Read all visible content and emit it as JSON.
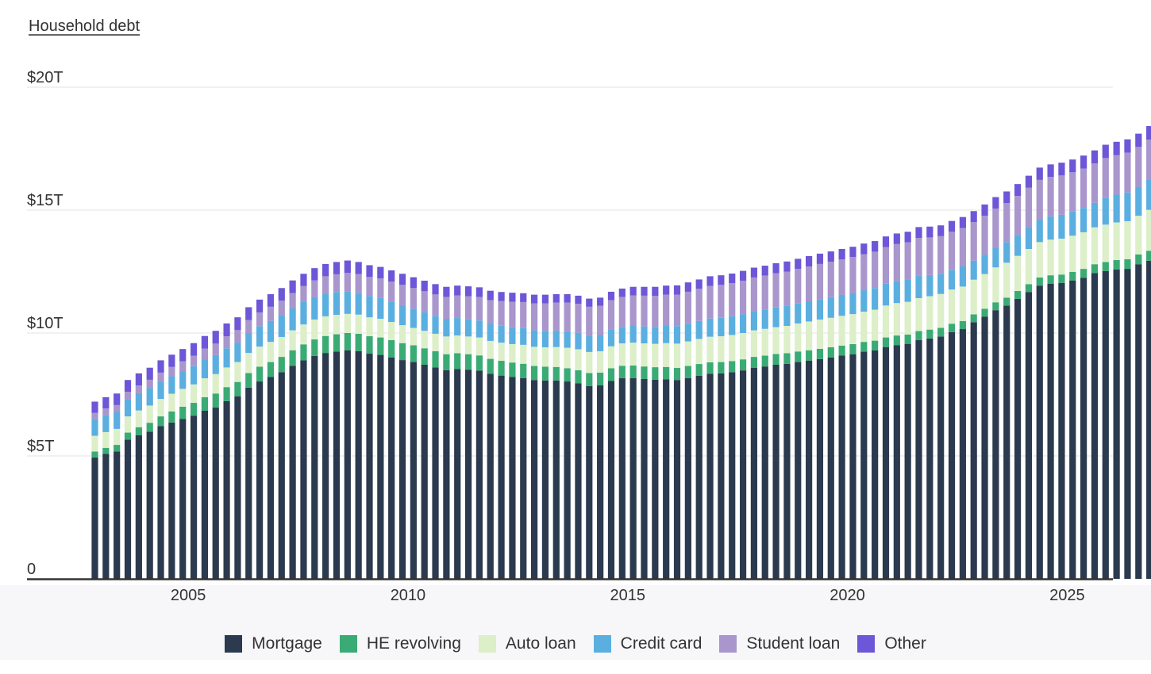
{
  "chart_data": {
    "type": "bar",
    "stacked": true,
    "title": "Household debt",
    "y_unit": "trillions of dollars",
    "ylim": [
      0,
      20
    ],
    "y_ticks": [
      {
        "value": 0,
        "label": "0"
      },
      {
        "value": 5,
        "label": "$5T"
      },
      {
        "value": 10,
        "label": "$10T"
      },
      {
        "value": 15,
        "label": "$15T"
      },
      {
        "value": 20,
        "label": "$20T"
      }
    ],
    "x_ticks": [
      {
        "value": 2005,
        "label": "2005"
      },
      {
        "value": 2010,
        "label": "2010"
      },
      {
        "value": 2015,
        "label": "2015"
      },
      {
        "value": 2020,
        "label": "2020"
      },
      {
        "value": 2025,
        "label": "2025"
      }
    ],
    "x_start": 2003.0,
    "x_step": 0.25,
    "grid": true,
    "legend_position": "bottom",
    "series": [
      {
        "name": "Mortgage",
        "color": "#2b3a4e",
        "values": [
          4.94,
          5.08,
          5.18,
          5.66,
          5.84,
          5.99,
          6.21,
          6.36,
          6.51,
          6.64,
          6.84,
          6.97,
          7.23,
          7.43,
          7.78,
          8.03,
          8.21,
          8.41,
          8.67,
          8.89,
          9.07,
          9.19,
          9.25,
          9.3,
          9.26,
          9.16,
          9.11,
          9.01,
          8.9,
          8.82,
          8.71,
          8.6,
          8.49,
          8.54,
          8.51,
          8.47,
          8.34,
          8.27,
          8.21,
          8.17,
          8.09,
          8.07,
          8.07,
          8.03,
          7.96,
          7.84,
          7.87,
          8.05,
          8.16,
          8.17,
          8.13,
          8.1,
          8.12,
          8.09,
          8.17,
          8.26,
          8.34,
          8.36,
          8.41,
          8.48,
          8.59,
          8.64,
          8.71,
          8.75,
          8.82,
          8.88,
          8.94,
          9.0,
          9.08,
          9.14,
          9.24,
          9.29,
          9.43,
          9.51,
          9.56,
          9.71,
          9.78,
          9.86,
          10.04,
          10.16,
          10.44,
          10.67,
          10.93,
          11.12,
          11.39,
          11.67,
          11.93,
          12.01,
          12.04,
          12.14,
          12.25,
          12.44,
          12.52,
          12.59,
          12.61,
          12.8,
          12.94
        ]
      },
      {
        "name": "HE revolving",
        "color": "#3aab74",
        "values": [
          0.24,
          0.25,
          0.27,
          0.29,
          0.33,
          0.36,
          0.4,
          0.45,
          0.49,
          0.52,
          0.55,
          0.57,
          0.57,
          0.58,
          0.59,
          0.6,
          0.61,
          0.62,
          0.63,
          0.65,
          0.67,
          0.69,
          0.7,
          0.7,
          0.71,
          0.71,
          0.71,
          0.7,
          0.69,
          0.68,
          0.67,
          0.66,
          0.65,
          0.64,
          0.63,
          0.62,
          0.61,
          0.6,
          0.59,
          0.58,
          0.57,
          0.56,
          0.55,
          0.54,
          0.53,
          0.53,
          0.52,
          0.52,
          0.51,
          0.51,
          0.51,
          0.51,
          0.5,
          0.49,
          0.49,
          0.48,
          0.47,
          0.46,
          0.45,
          0.45,
          0.44,
          0.44,
          0.44,
          0.43,
          0.43,
          0.42,
          0.42,
          0.42,
          0.41,
          0.41,
          0.4,
          0.4,
          0.39,
          0.39,
          0.38,
          0.37,
          0.36,
          0.35,
          0.34,
          0.33,
          0.32,
          0.32,
          0.32,
          0.32,
          0.32,
          0.32,
          0.33,
          0.34,
          0.34,
          0.35,
          0.36,
          0.36,
          0.37,
          0.38,
          0.39,
          0.4,
          0.41
        ]
      },
      {
        "name": "Auto loan",
        "color": "#dcefc8",
        "values": [
          0.64,
          0.64,
          0.65,
          0.66,
          0.68,
          0.7,
          0.71,
          0.72,
          0.73,
          0.75,
          0.77,
          0.79,
          0.8,
          0.81,
          0.82,
          0.82,
          0.82,
          0.81,
          0.81,
          0.81,
          0.81,
          0.8,
          0.79,
          0.78,
          0.78,
          0.77,
          0.76,
          0.74,
          0.73,
          0.71,
          0.71,
          0.71,
          0.72,
          0.72,
          0.72,
          0.73,
          0.73,
          0.74,
          0.75,
          0.77,
          0.78,
          0.79,
          0.81,
          0.83,
          0.85,
          0.86,
          0.87,
          0.89,
          0.91,
          0.93,
          0.94,
          0.95,
          0.97,
          0.99,
          1.0,
          1.02,
          1.04,
          1.05,
          1.06,
          1.07,
          1.08,
          1.09,
          1.09,
          1.11,
          1.14,
          1.17,
          1.19,
          1.2,
          1.21,
          1.22,
          1.23,
          1.26,
          1.3,
          1.32,
          1.33,
          1.34,
          1.36,
          1.38,
          1.39,
          1.4,
          1.41,
          1.41,
          1.42,
          1.42,
          1.43,
          1.43,
          1.44,
          1.45,
          1.46,
          1.47,
          1.49,
          1.5,
          1.52,
          1.53,
          1.55,
          1.57,
          1.66
        ]
      },
      {
        "name": "Credit card",
        "color": "#5aafe0",
        "values": [
          0.69,
          0.7,
          0.69,
          0.7,
          0.7,
          0.71,
          0.71,
          0.71,
          0.72,
          0.74,
          0.76,
          0.77,
          0.78,
          0.79,
          0.81,
          0.83,
          0.85,
          0.87,
          0.89,
          0.91,
          0.92,
          0.93,
          0.93,
          0.92,
          0.89,
          0.87,
          0.85,
          0.83,
          0.81,
          0.78,
          0.76,
          0.73,
          0.72,
          0.71,
          0.7,
          0.69,
          0.69,
          0.69,
          0.68,
          0.68,
          0.67,
          0.67,
          0.67,
          0.67,
          0.67,
          0.66,
          0.66,
          0.67,
          0.67,
          0.68,
          0.69,
          0.69,
          0.7,
          0.71,
          0.72,
          0.73,
          0.74,
          0.75,
          0.76,
          0.77,
          0.78,
          0.79,
          0.8,
          0.81,
          0.81,
          0.82,
          0.83,
          0.84,
          0.85,
          0.86,
          0.87,
          0.88,
          0.89,
          0.9,
          0.91,
          0.93,
          0.86,
          0.81,
          0.8,
          0.82,
          0.77,
          0.79,
          0.8,
          0.84,
          0.84,
          0.89,
          0.93,
          0.95,
          0.97,
          0.98,
          0.99,
          1.0,
          1.1,
          1.13,
          1.17,
          1.18,
          1.23
        ]
      },
      {
        "name": "Student loan",
        "color": "#a996cc",
        "values": [
          0.24,
          0.26,
          0.28,
          0.3,
          0.32,
          0.34,
          0.36,
          0.38,
          0.4,
          0.43,
          0.45,
          0.47,
          0.49,
          0.51,
          0.53,
          0.56,
          0.58,
          0.61,
          0.63,
          0.65,
          0.67,
          0.7,
          0.72,
          0.75,
          0.76,
          0.77,
          0.79,
          0.81,
          0.83,
          0.84,
          0.85,
          0.87,
          0.89,
          0.92,
          0.94,
          0.96,
          0.97,
          1.0,
          1.04,
          1.06,
          1.1,
          1.12,
          1.14,
          1.17,
          1.18,
          1.18,
          1.19,
          1.21,
          1.22,
          1.24,
          1.25,
          1.26,
          1.27,
          1.28,
          1.3,
          1.31,
          1.33,
          1.34,
          1.35,
          1.36,
          1.37,
          1.38,
          1.39,
          1.4,
          1.41,
          1.42,
          1.43,
          1.44,
          1.45,
          1.46,
          1.47,
          1.48,
          1.49,
          1.5,
          1.51,
          1.52,
          1.53,
          1.54,
          1.55,
          1.56,
          1.57,
          1.58,
          1.59,
          1.59,
          1.6,
          1.6,
          1.6,
          1.6,
          1.6,
          1.6,
          1.6,
          1.6,
          1.61,
          1.61,
          1.62,
          1.62,
          1.63
        ]
      },
      {
        "name": "Other",
        "color": "#6e56d8",
        "values": [
          0.46,
          0.46,
          0.47,
          0.48,
          0.49,
          0.49,
          0.5,
          0.5,
          0.5,
          0.51,
          0.51,
          0.52,
          0.52,
          0.52,
          0.52,
          0.52,
          0.51,
          0.51,
          0.51,
          0.5,
          0.5,
          0.5,
          0.5,
          0.5,
          0.49,
          0.48,
          0.47,
          0.46,
          0.45,
          0.44,
          0.43,
          0.42,
          0.41,
          0.4,
          0.4,
          0.39,
          0.38,
          0.37,
          0.37,
          0.36,
          0.35,
          0.35,
          0.34,
          0.34,
          0.33,
          0.33,
          0.33,
          0.34,
          0.34,
          0.35,
          0.36,
          0.37,
          0.37,
          0.38,
          0.38,
          0.38,
          0.39,
          0.39,
          0.39,
          0.4,
          0.4,
          0.4,
          0.41,
          0.41,
          0.41,
          0.42,
          0.42,
          0.42,
          0.42,
          0.42,
          0.43,
          0.43,
          0.43,
          0.43,
          0.43,
          0.44,
          0.44,
          0.44,
          0.44,
          0.45,
          0.45,
          0.46,
          0.47,
          0.47,
          0.48,
          0.49,
          0.5,
          0.51,
          0.52,
          0.52,
          0.53,
          0.53,
          0.54,
          0.54,
          0.54,
          0.54,
          0.55
        ]
      }
    ]
  }
}
